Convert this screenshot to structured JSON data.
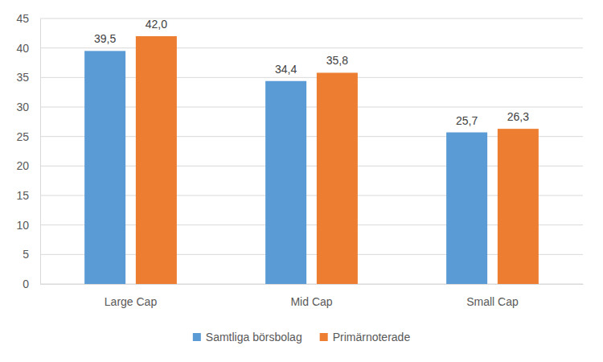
{
  "chart_data": {
    "type": "bar",
    "categories": [
      "Large Cap",
      "Mid Cap",
      "Small Cap"
    ],
    "series": [
      {
        "name": "Samtliga börsbolag",
        "color": "#5b9bd5",
        "values": [
          39.5,
          34.4,
          25.7
        ],
        "value_labels": [
          "39,5",
          "34,4",
          "25,7"
        ]
      },
      {
        "name": "Primärnoterade",
        "color": "#ed7d31",
        "values": [
          42.0,
          35.8,
          26.3
        ],
        "value_labels": [
          "42,0",
          "35,8",
          "26,3"
        ]
      }
    ],
    "ylim": [
      0,
      45
    ],
    "yticks": [
      0,
      5,
      10,
      15,
      20,
      25,
      30,
      35,
      40,
      45
    ],
    "grid": true,
    "legend": "bottom",
    "data_labels": true
  }
}
